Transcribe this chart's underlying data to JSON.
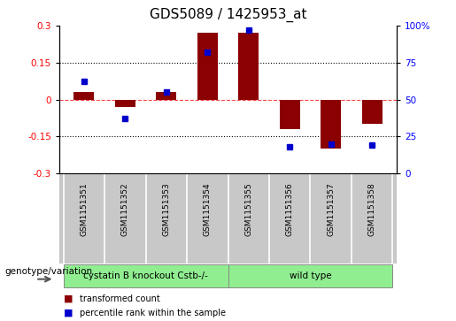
{
  "title": "GDS5089 / 1425953_at",
  "samples": [
    "GSM1151351",
    "GSM1151352",
    "GSM1151353",
    "GSM1151354",
    "GSM1151355",
    "GSM1151356",
    "GSM1151357",
    "GSM1151358"
  ],
  "transformed_count": [
    0.03,
    -0.03,
    0.03,
    0.27,
    0.27,
    -0.12,
    -0.2,
    -0.1
  ],
  "percentile_rank": [
    62,
    37,
    55,
    82,
    97,
    18,
    20,
    19
  ],
  "groups": [
    {
      "label": "cystatin B knockout Cstb-/-",
      "start": 0,
      "end": 4,
      "color": "#90EE90"
    },
    {
      "label": "wild type",
      "start": 4,
      "end": 8,
      "color": "#90EE90"
    }
  ],
  "group_boundary": 4,
  "ylim_left": [
    -0.3,
    0.3
  ],
  "ylim_right": [
    0,
    100
  ],
  "yticks_left": [
    -0.3,
    -0.15,
    0,
    0.15,
    0.3
  ],
  "yticks_right": [
    0,
    25,
    50,
    75,
    100
  ],
  "bar_color": "#8B0000",
  "dot_color": "#0000CD",
  "zero_line_color": "#FF4444",
  "grid_color": "#000000",
  "bg_color": "#FFFFFF",
  "plot_bg": "#FFFFFF",
  "label_group": "genotype/variation",
  "legend_red": "transformed count",
  "legend_blue": "percentile rank within the sample",
  "title_fontsize": 11,
  "tick_fontsize": 7.5,
  "label_fontsize": 8,
  "sample_fontsize": 6.5,
  "group_fontsize": 7.5
}
